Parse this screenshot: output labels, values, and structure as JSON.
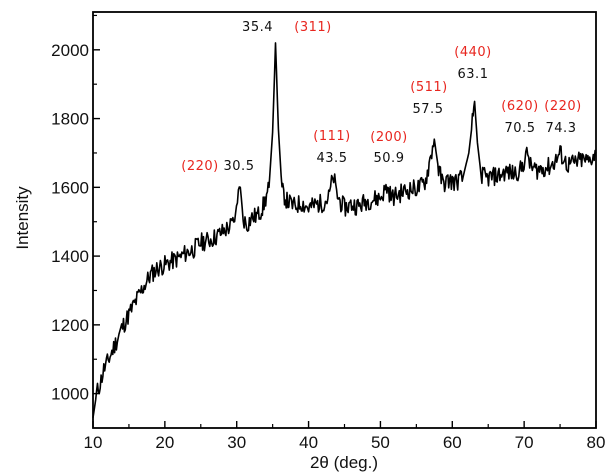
{
  "chart_data": {
    "type": "line",
    "title": "",
    "xlabel": "2θ (deg.)",
    "ylabel": "Intensity",
    "xlim": [
      10,
      80
    ],
    "ylim": [
      900,
      2110
    ],
    "xticks": [
      10,
      20,
      30,
      40,
      50,
      60,
      70,
      80
    ],
    "yticks": [
      1000,
      1200,
      1400,
      1600,
      1800,
      2000
    ],
    "grid": false,
    "series_color": "#000000",
    "annotation_color": "#e8261f",
    "series": [
      {
        "x": [
          10,
          10.5,
          11,
          11.5,
          12,
          13,
          14,
          15,
          16,
          17,
          18,
          19,
          20,
          21,
          22,
          23,
          24,
          25,
          26,
          27,
          28,
          29,
          29.7,
          30.1,
          30.5,
          30.9,
          31.4,
          32,
          33,
          33.8,
          34.5,
          35,
          35.4,
          35.8,
          36.3,
          37,
          38,
          39,
          40,
          41,
          42,
          42.8,
          43.2,
          43.5,
          43.9,
          44.5,
          45,
          46,
          47,
          48,
          49,
          50,
          50.9,
          51.6,
          52.5,
          53.5,
          54.5,
          55.5,
          56.3,
          56.9,
          57.5,
          58.1,
          58.7,
          59.5,
          60.5,
          61.5,
          62.3,
          62.8,
          63.1,
          63.5,
          64,
          64.7,
          65.5,
          66.5,
          67.5,
          68.5,
          69.5,
          70.1,
          70.5,
          70.9,
          71.7,
          72.5,
          73.5,
          74.3,
          75,
          76,
          77,
          78,
          79,
          79.5,
          80
        ],
        "y": [
          930,
          1000,
          1030,
          1070,
          1090,
          1140,
          1190,
          1230,
          1270,
          1310,
          1345,
          1365,
          1375,
          1385,
          1395,
          1410,
          1420,
          1440,
          1445,
          1455,
          1470,
          1485,
          1500,
          1570,
          1600,
          1510,
          1490,
          1510,
          1520,
          1550,
          1600,
          1760,
          2020,
          1770,
          1590,
          1560,
          1545,
          1555,
          1540,
          1550,
          1555,
          1570,
          1610,
          1630,
          1580,
          1555,
          1540,
          1550,
          1545,
          1560,
          1565,
          1570,
          1600,
          1570,
          1580,
          1590,
          1595,
          1600,
          1620,
          1680,
          1740,
          1650,
          1610,
          1620,
          1615,
          1630,
          1700,
          1790,
          1850,
          1730,
          1640,
          1625,
          1630,
          1635,
          1645,
          1640,
          1650,
          1680,
          1700,
          1660,
          1650,
          1655,
          1660,
          1675,
          1700,
          1665,
          1670,
          1680,
          1675,
          1690,
          1700
        ]
      }
    ],
    "annotations": [
      {
        "hkl": "(220)",
        "pos": "30.5"
      },
      {
        "hkl": "(311)",
        "pos": "35.4"
      },
      {
        "hkl": "(111)",
        "pos": "43.5"
      },
      {
        "hkl": "(200)",
        "pos": "50.9"
      },
      {
        "hkl": "(511)",
        "pos": "57.5"
      },
      {
        "hkl": "(440)",
        "pos": "63.1"
      },
      {
        "hkl": "(620)",
        "pos": "70.5"
      },
      {
        "hkl": "(220)",
        "pos": "74.3"
      }
    ]
  }
}
